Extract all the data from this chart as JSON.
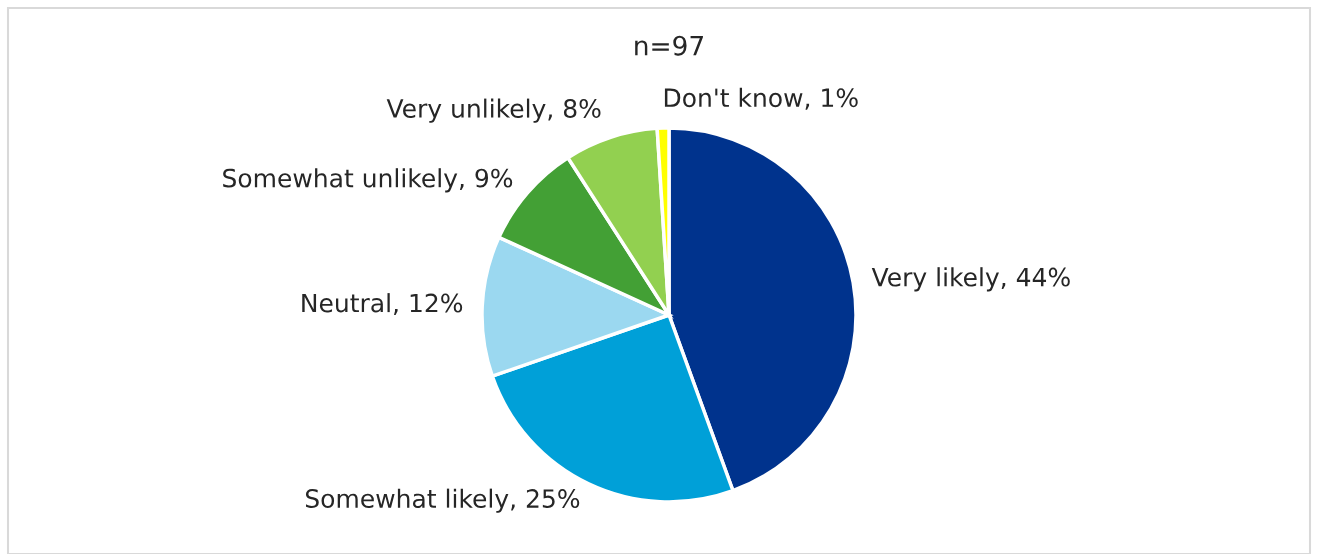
{
  "chart_data": {
    "type": "pie",
    "title": "n=97",
    "categories": [
      "Very likely",
      "Somewhat likely",
      "Neutral",
      "Somewhat unlikely",
      "Very unlikely",
      "Don't know"
    ],
    "values": [
      44,
      25,
      12,
      9,
      8,
      1
    ],
    "value_labels": [
      "44%",
      "25%",
      "12%",
      "9%",
      "8%",
      "1%"
    ],
    "colors": [
      "#00338d",
      "#00a0d8",
      "#9bd8f0",
      "#43a035",
      "#92d050",
      "#ffff00"
    ]
  }
}
